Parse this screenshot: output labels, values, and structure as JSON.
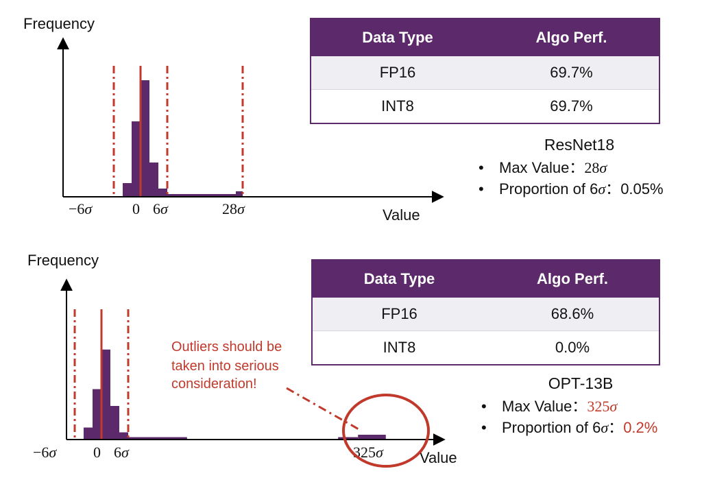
{
  "colors": {
    "accent": "#5c2a6a",
    "bar": "#5c2a6a",
    "threshold": "#c0392b",
    "highlight": "#c0392b"
  },
  "chart_data": [
    {
      "type": "bar",
      "title": "ResNet18",
      "ylabel": "Frequency",
      "xlabel": "Value",
      "x_ticks": [
        {
          "value": -6,
          "label": "−6σ"
        },
        {
          "value": 0,
          "label": "0"
        },
        {
          "value": 6,
          "label": "6σ"
        },
        {
          "value": 28,
          "label": "28σ"
        }
      ],
      "threshold_lines": [
        -6,
        6,
        28
      ],
      "mean_line": 0,
      "bins": [
        {
          "x0": -4,
          "x1": -2,
          "y": 0.1
        },
        {
          "x0": -2,
          "x1": 0,
          "y": 0.55
        },
        {
          "x0": 0,
          "x1": 2,
          "y": 0.85
        },
        {
          "x0": 2,
          "x1": 4,
          "y": 0.25
        },
        {
          "x0": 4,
          "x1": 6,
          "y": 0.06
        },
        {
          "x0": 6,
          "x1": 26,
          "y": 0.02
        },
        {
          "x0": 26,
          "x1": 28,
          "y": 0.04
        }
      ],
      "max_value": "28σ",
      "proportion_6sigma": "0.05%"
    },
    {
      "type": "bar",
      "title": "OPT-13B",
      "ylabel": "Frequency",
      "xlabel": "Value",
      "x_ticks": [
        {
          "value": -6,
          "label": "−6σ"
        },
        {
          "value": 0,
          "label": "0"
        },
        {
          "value": 6,
          "label": "6σ"
        },
        {
          "value": 325,
          "label": "325σ"
        }
      ],
      "threshold_lines": [
        -6,
        6
      ],
      "mean_line": 0,
      "bins": [
        {
          "x0": -4,
          "x1": -2,
          "y": 0.1
        },
        {
          "x0": -2,
          "x1": 0,
          "y": 0.42
        },
        {
          "x0": 0,
          "x1": 2,
          "y": 0.75
        },
        {
          "x0": 2,
          "x1": 4,
          "y": 0.28
        },
        {
          "x0": 4,
          "x1": 6,
          "y": 0.06
        },
        {
          "x0": 6,
          "x1": 80,
          "y": 0.02
        },
        {
          "x0": 270,
          "x1": 295,
          "y": 0.02
        },
        {
          "x0": 295,
          "x1": 330,
          "y": 0.04
        }
      ],
      "max_value": "325σ",
      "proportion_6sigma": "0.2%"
    }
  ],
  "top": {
    "tick_labels": [
      "−6",
      "0",
      "6",
      "28"
    ],
    "table": {
      "headers": [
        "Data Type",
        "Algo Perf."
      ],
      "rows": [
        [
          "FP16",
          "69.7%"
        ],
        [
          "INT8",
          "69.7%"
        ]
      ]
    },
    "model": "ResNet18",
    "max_label": "Max Value：",
    "max_value": "28",
    "prop_label": "Proportion of 6",
    "prop_sep": "：",
    "prop_value": "0.05%"
  },
  "bottom": {
    "tick_labels": [
      "−6",
      "0",
      "6",
      "325"
    ],
    "table": {
      "headers": [
        "Data Type",
        "Algo Perf."
      ],
      "rows": [
        [
          "FP16",
          "68.6%"
        ],
        [
          "INT8",
          "0.0%"
        ]
      ]
    },
    "model": "OPT-13B",
    "max_label": "Max Value：",
    "max_value": "325",
    "prop_label": "Proportion of 6",
    "prop_sep": "：",
    "prop_value": "0.2%",
    "annotation": [
      "Outliers should be",
      "taken into serious",
      "consideration!"
    ]
  },
  "sigma": "σ",
  "axis_y_label": "Frequency",
  "axis_x_label": "Value"
}
